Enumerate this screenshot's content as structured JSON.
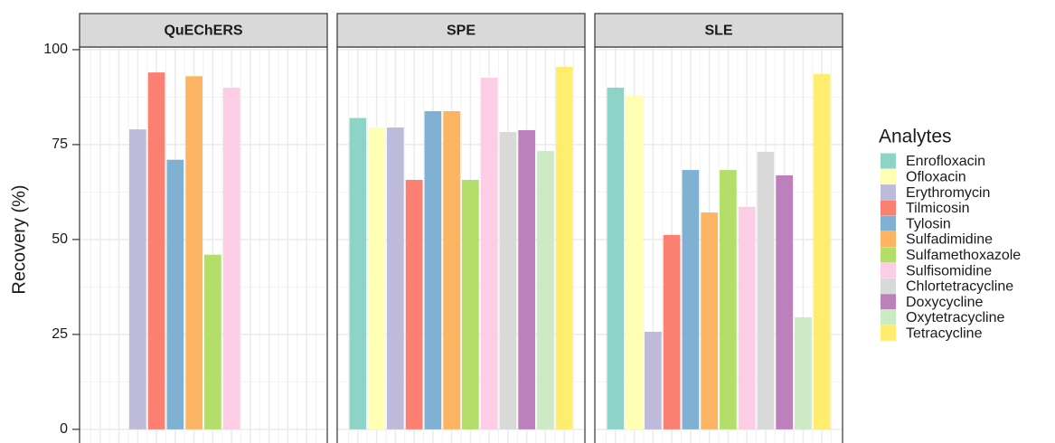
{
  "chart_data": {
    "type": "bar",
    "y_label": "Recovery (%)",
    "legend_title": "Analytes",
    "categories": [
      "Enrofloxacin",
      "Ofloxacin",
      "Erythromycin",
      "Tilmicosin",
      "Tylosin",
      "Sulfadimidine",
      "Sulfamethoxazole",
      "Sulfisomidine",
      "Chlortetracycline",
      "Doxycycline",
      "Oxytetracycline",
      "Tetracycline"
    ],
    "colors": [
      "#8DD3C7",
      "#FFFFB3",
      "#BEBADA",
      "#FB8072",
      "#80B1D3",
      "#FDB462",
      "#B3DE69",
      "#FCCDE5",
      "#D9D9D9",
      "#BC80BD",
      "#CCEBC5",
      "#FFED6F"
    ],
    "series": [
      {
        "name": "QuEChERS",
        "values": [
          null,
          null,
          79,
          94,
          71,
          93,
          46,
          90,
          null,
          null,
          null,
          null
        ]
      },
      {
        "name": "SPE",
        "values": [
          82,
          79.5,
          79.5,
          65.7,
          83.8,
          83.8,
          65.7,
          92.6,
          78.3,
          78.8,
          73.3,
          95.5
        ]
      },
      {
        "name": "SLE",
        "values": [
          90,
          87.9,
          25.7,
          51.2,
          68.3,
          57.1,
          68.3,
          58.6,
          73.1,
          66.9,
          29.5,
          93.6
        ]
      }
    ],
    "ylim": [
      -3.6,
      100.7
    ],
    "yticks": [
      0,
      25,
      50,
      75,
      100
    ],
    "grid": true,
    "legend_position": "right"
  }
}
